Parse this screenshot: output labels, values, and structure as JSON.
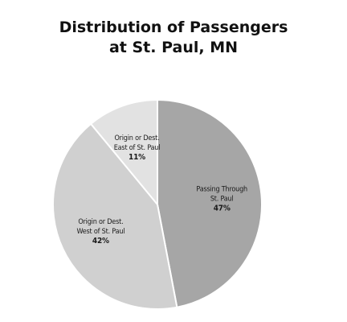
{
  "chart_data": {
    "type": "pie",
    "title_lines": [
      "Distribution of Passengers",
      "at St. Paul, MN"
    ],
    "slices": [
      {
        "label_lines": [
          "Passing Through",
          "St. Paul"
        ],
        "value": 47,
        "value_label": "47%",
        "color": "#a6a6a6"
      },
      {
        "label_lines": [
          "Origin or Dest.",
          "West of St. Paul"
        ],
        "value": 42,
        "value_label": "42%",
        "color": "#d0d0d0"
      },
      {
        "label_lines": [
          "Origin or Dest.",
          "East of St. Paul"
        ],
        "value": 11,
        "value_label": "11%",
        "color": "#e2e2e2"
      }
    ],
    "start_angle_deg": 0,
    "direction": "clockwise",
    "legend": "none"
  }
}
